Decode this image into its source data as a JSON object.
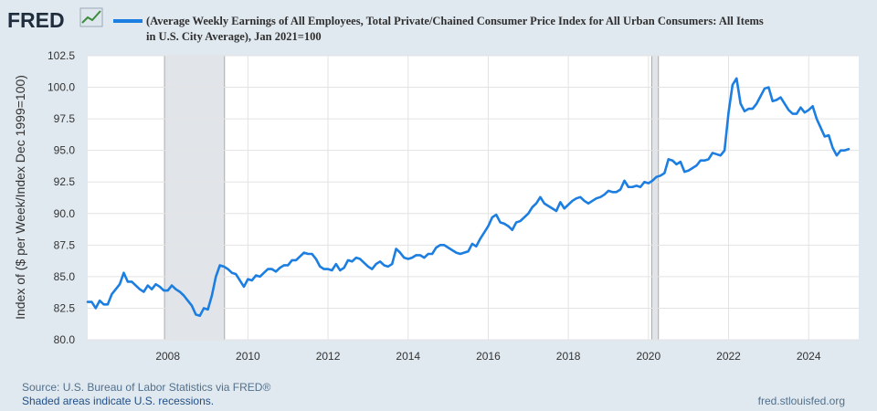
{
  "brand": {
    "logo_text": "FRED"
  },
  "colors": {
    "background": "#e1e9f0",
    "plot_background": "#ffffff",
    "series_line": "#1c7ee0",
    "recession_shade": "#e1e5ea",
    "gridline": "#e3e3e3"
  },
  "legend": {
    "line1": "(Average Weekly Earnings of All Employees, Total Private/Chained Consumer Price Index for All Urban Consumers: All Items",
    "line2": "in U.S. City Average), Jan 2021=100"
  },
  "footer": {
    "source": "Source: U.S. Bureau of Labor Statistics via FRED®",
    "recession_note": "Shaded areas indicate U.S. recessions.",
    "site": "fred.stlouisfed.org"
  },
  "chart_data": {
    "type": "line",
    "title": "(Average Weekly Earnings of All Employees, Total Private/Chained Consumer Price Index for All Urban Consumers: All Items in U.S. City Average), Jan 2021=100",
    "ylabel": "Index of ($ per Week/Index Dec 1999=100)",
    "xlabel": "",
    "ylim": [
      80.0,
      102.5
    ],
    "xlim": [
      2006.0,
      2025.25
    ],
    "y_ticks": [
      "80.0",
      "82.5",
      "85.0",
      "87.5",
      "90.0",
      "92.5",
      "95.0",
      "97.5",
      "100.0",
      "102.5"
    ],
    "x_ticks": [
      "2008",
      "2010",
      "2012",
      "2014",
      "2016",
      "2018",
      "2020",
      "2022",
      "2024"
    ],
    "grid": true,
    "recessions": [
      {
        "start": 2007.917,
        "end": 2009.417
      },
      {
        "start": 2020.083,
        "end": 2020.25
      }
    ],
    "series": [
      {
        "values": [
          [
            2006.0,
            83.0
          ],
          [
            2006.1,
            83.0
          ],
          [
            2006.2,
            82.5
          ],
          [
            2006.3,
            83.1
          ],
          [
            2006.4,
            82.8
          ],
          [
            2006.5,
            82.8
          ],
          [
            2006.6,
            83.6
          ],
          [
            2006.7,
            84.0
          ],
          [
            2006.8,
            84.4
          ],
          [
            2006.9,
            85.3
          ],
          [
            2007.0,
            84.6
          ],
          [
            2007.1,
            84.6
          ],
          [
            2007.2,
            84.3
          ],
          [
            2007.3,
            84.0
          ],
          [
            2007.4,
            83.8
          ],
          [
            2007.5,
            84.3
          ],
          [
            2007.6,
            84.0
          ],
          [
            2007.7,
            84.4
          ],
          [
            2007.8,
            84.2
          ],
          [
            2007.9,
            83.9
          ],
          [
            2008.0,
            83.9
          ],
          [
            2008.1,
            84.3
          ],
          [
            2008.2,
            84.0
          ],
          [
            2008.3,
            83.8
          ],
          [
            2008.4,
            83.5
          ],
          [
            2008.5,
            83.1
          ],
          [
            2008.6,
            82.7
          ],
          [
            2008.7,
            82.0
          ],
          [
            2008.8,
            81.9
          ],
          [
            2008.9,
            82.5
          ],
          [
            2009.0,
            82.4
          ],
          [
            2009.1,
            83.5
          ],
          [
            2009.2,
            85.0
          ],
          [
            2009.3,
            85.9
          ],
          [
            2009.4,
            85.8
          ],
          [
            2009.5,
            85.6
          ],
          [
            2009.6,
            85.3
          ],
          [
            2009.7,
            85.2
          ],
          [
            2009.8,
            84.7
          ],
          [
            2009.9,
            84.2
          ],
          [
            2010.0,
            84.8
          ],
          [
            2010.1,
            84.7
          ],
          [
            2010.2,
            85.1
          ],
          [
            2010.3,
            85.0
          ],
          [
            2010.4,
            85.3
          ],
          [
            2010.5,
            85.6
          ],
          [
            2010.6,
            85.6
          ],
          [
            2010.7,
            85.4
          ],
          [
            2010.8,
            85.7
          ],
          [
            2010.9,
            85.9
          ],
          [
            2011.0,
            85.9
          ],
          [
            2011.1,
            86.3
          ],
          [
            2011.2,
            86.3
          ],
          [
            2011.3,
            86.6
          ],
          [
            2011.4,
            86.9
          ],
          [
            2011.5,
            86.8
          ],
          [
            2011.6,
            86.8
          ],
          [
            2011.7,
            86.4
          ],
          [
            2011.8,
            85.8
          ],
          [
            2011.9,
            85.6
          ],
          [
            2012.0,
            85.6
          ],
          [
            2012.1,
            85.5
          ],
          [
            2012.2,
            86.0
          ],
          [
            2012.3,
            85.5
          ],
          [
            2012.4,
            85.7
          ],
          [
            2012.5,
            86.3
          ],
          [
            2012.6,
            86.2
          ],
          [
            2012.7,
            86.5
          ],
          [
            2012.8,
            86.4
          ],
          [
            2012.9,
            86.1
          ],
          [
            2013.0,
            85.8
          ],
          [
            2013.1,
            85.6
          ],
          [
            2013.2,
            86.0
          ],
          [
            2013.3,
            86.2
          ],
          [
            2013.4,
            85.9
          ],
          [
            2013.5,
            85.8
          ],
          [
            2013.6,
            86.0
          ],
          [
            2013.7,
            87.2
          ],
          [
            2013.8,
            86.9
          ],
          [
            2013.9,
            86.5
          ],
          [
            2014.0,
            86.4
          ],
          [
            2014.1,
            86.5
          ],
          [
            2014.2,
            86.7
          ],
          [
            2014.3,
            86.7
          ],
          [
            2014.4,
            86.5
          ],
          [
            2014.5,
            86.8
          ],
          [
            2014.6,
            86.8
          ],
          [
            2014.7,
            87.3
          ],
          [
            2014.8,
            87.5
          ],
          [
            2014.9,
            87.5
          ],
          [
            2015.0,
            87.3
          ],
          [
            2015.1,
            87.1
          ],
          [
            2015.2,
            86.9
          ],
          [
            2015.3,
            86.8
          ],
          [
            2015.4,
            86.9
          ],
          [
            2015.5,
            87.0
          ],
          [
            2015.6,
            87.6
          ],
          [
            2015.7,
            87.4
          ],
          [
            2015.8,
            88.0
          ],
          [
            2015.9,
            88.5
          ],
          [
            2016.0,
            89.0
          ],
          [
            2016.1,
            89.7
          ],
          [
            2016.2,
            89.9
          ],
          [
            2016.3,
            89.3
          ],
          [
            2016.4,
            89.2
          ],
          [
            2016.5,
            89.0
          ],
          [
            2016.6,
            88.7
          ],
          [
            2016.7,
            89.3
          ],
          [
            2016.8,
            89.4
          ],
          [
            2016.9,
            89.7
          ],
          [
            2017.0,
            90.0
          ],
          [
            2017.1,
            90.5
          ],
          [
            2017.2,
            90.8
          ],
          [
            2017.3,
            91.3
          ],
          [
            2017.4,
            90.8
          ],
          [
            2017.5,
            90.6
          ],
          [
            2017.6,
            90.4
          ],
          [
            2017.7,
            90.2
          ],
          [
            2017.8,
            90.9
          ],
          [
            2017.9,
            90.4
          ],
          [
            2018.0,
            90.7
          ],
          [
            2018.1,
            91.0
          ],
          [
            2018.2,
            91.2
          ],
          [
            2018.3,
            91.3
          ],
          [
            2018.4,
            91.0
          ],
          [
            2018.5,
            90.8
          ],
          [
            2018.6,
            91.0
          ],
          [
            2018.7,
            91.2
          ],
          [
            2018.8,
            91.3
          ],
          [
            2018.9,
            91.5
          ],
          [
            2019.0,
            91.8
          ],
          [
            2019.1,
            91.7
          ],
          [
            2019.2,
            91.7
          ],
          [
            2019.3,
            91.9
          ],
          [
            2019.4,
            92.6
          ],
          [
            2019.5,
            92.1
          ],
          [
            2019.6,
            92.1
          ],
          [
            2019.7,
            92.2
          ],
          [
            2019.8,
            92.1
          ],
          [
            2019.9,
            92.5
          ],
          [
            2020.0,
            92.4
          ],
          [
            2020.1,
            92.6
          ],
          [
            2020.2,
            92.9
          ],
          [
            2020.3,
            93.0
          ],
          [
            2020.4,
            93.2
          ],
          [
            2020.5,
            94.3
          ],
          [
            2020.6,
            94.2
          ],
          [
            2020.7,
            93.9
          ],
          [
            2020.8,
            94.1
          ],
          [
            2020.9,
            93.3
          ],
          [
            2021.0,
            93.4
          ],
          [
            2021.1,
            93.6
          ],
          [
            2021.2,
            93.8
          ],
          [
            2021.3,
            94.2
          ],
          [
            2021.4,
            94.2
          ],
          [
            2021.5,
            94.3
          ],
          [
            2021.6,
            94.8
          ],
          [
            2021.7,
            94.7
          ],
          [
            2021.8,
            94.6
          ],
          [
            2021.9,
            95.0
          ],
          [
            2022.0,
            98.0
          ],
          [
            2022.1,
            100.2
          ],
          [
            2022.2,
            100.7
          ],
          [
            2022.3,
            98.7
          ],
          [
            2022.4,
            98.1
          ],
          [
            2022.5,
            98.3
          ],
          [
            2022.6,
            98.3
          ],
          [
            2022.7,
            98.7
          ],
          [
            2022.8,
            99.3
          ],
          [
            2022.9,
            99.9
          ],
          [
            2023.0,
            100.0
          ],
          [
            2023.1,
            98.9
          ],
          [
            2023.2,
            99.0
          ],
          [
            2023.3,
            99.2
          ],
          [
            2023.4,
            98.7
          ],
          [
            2023.5,
            98.2
          ],
          [
            2023.6,
            97.9
          ],
          [
            2023.7,
            97.9
          ],
          [
            2023.8,
            98.4
          ],
          [
            2023.9,
            98.0
          ],
          [
            2024.0,
            98.2
          ],
          [
            2024.1,
            98.5
          ],
          [
            2024.2,
            97.5
          ],
          [
            2024.3,
            96.8
          ],
          [
            2024.4,
            96.1
          ],
          [
            2024.5,
            96.2
          ],
          [
            2024.6,
            95.2
          ],
          [
            2024.7,
            94.6
          ],
          [
            2024.8,
            95.0
          ],
          [
            2024.9,
            95.0
          ],
          [
            2025.0,
            95.1
          ]
        ]
      }
    ]
  }
}
